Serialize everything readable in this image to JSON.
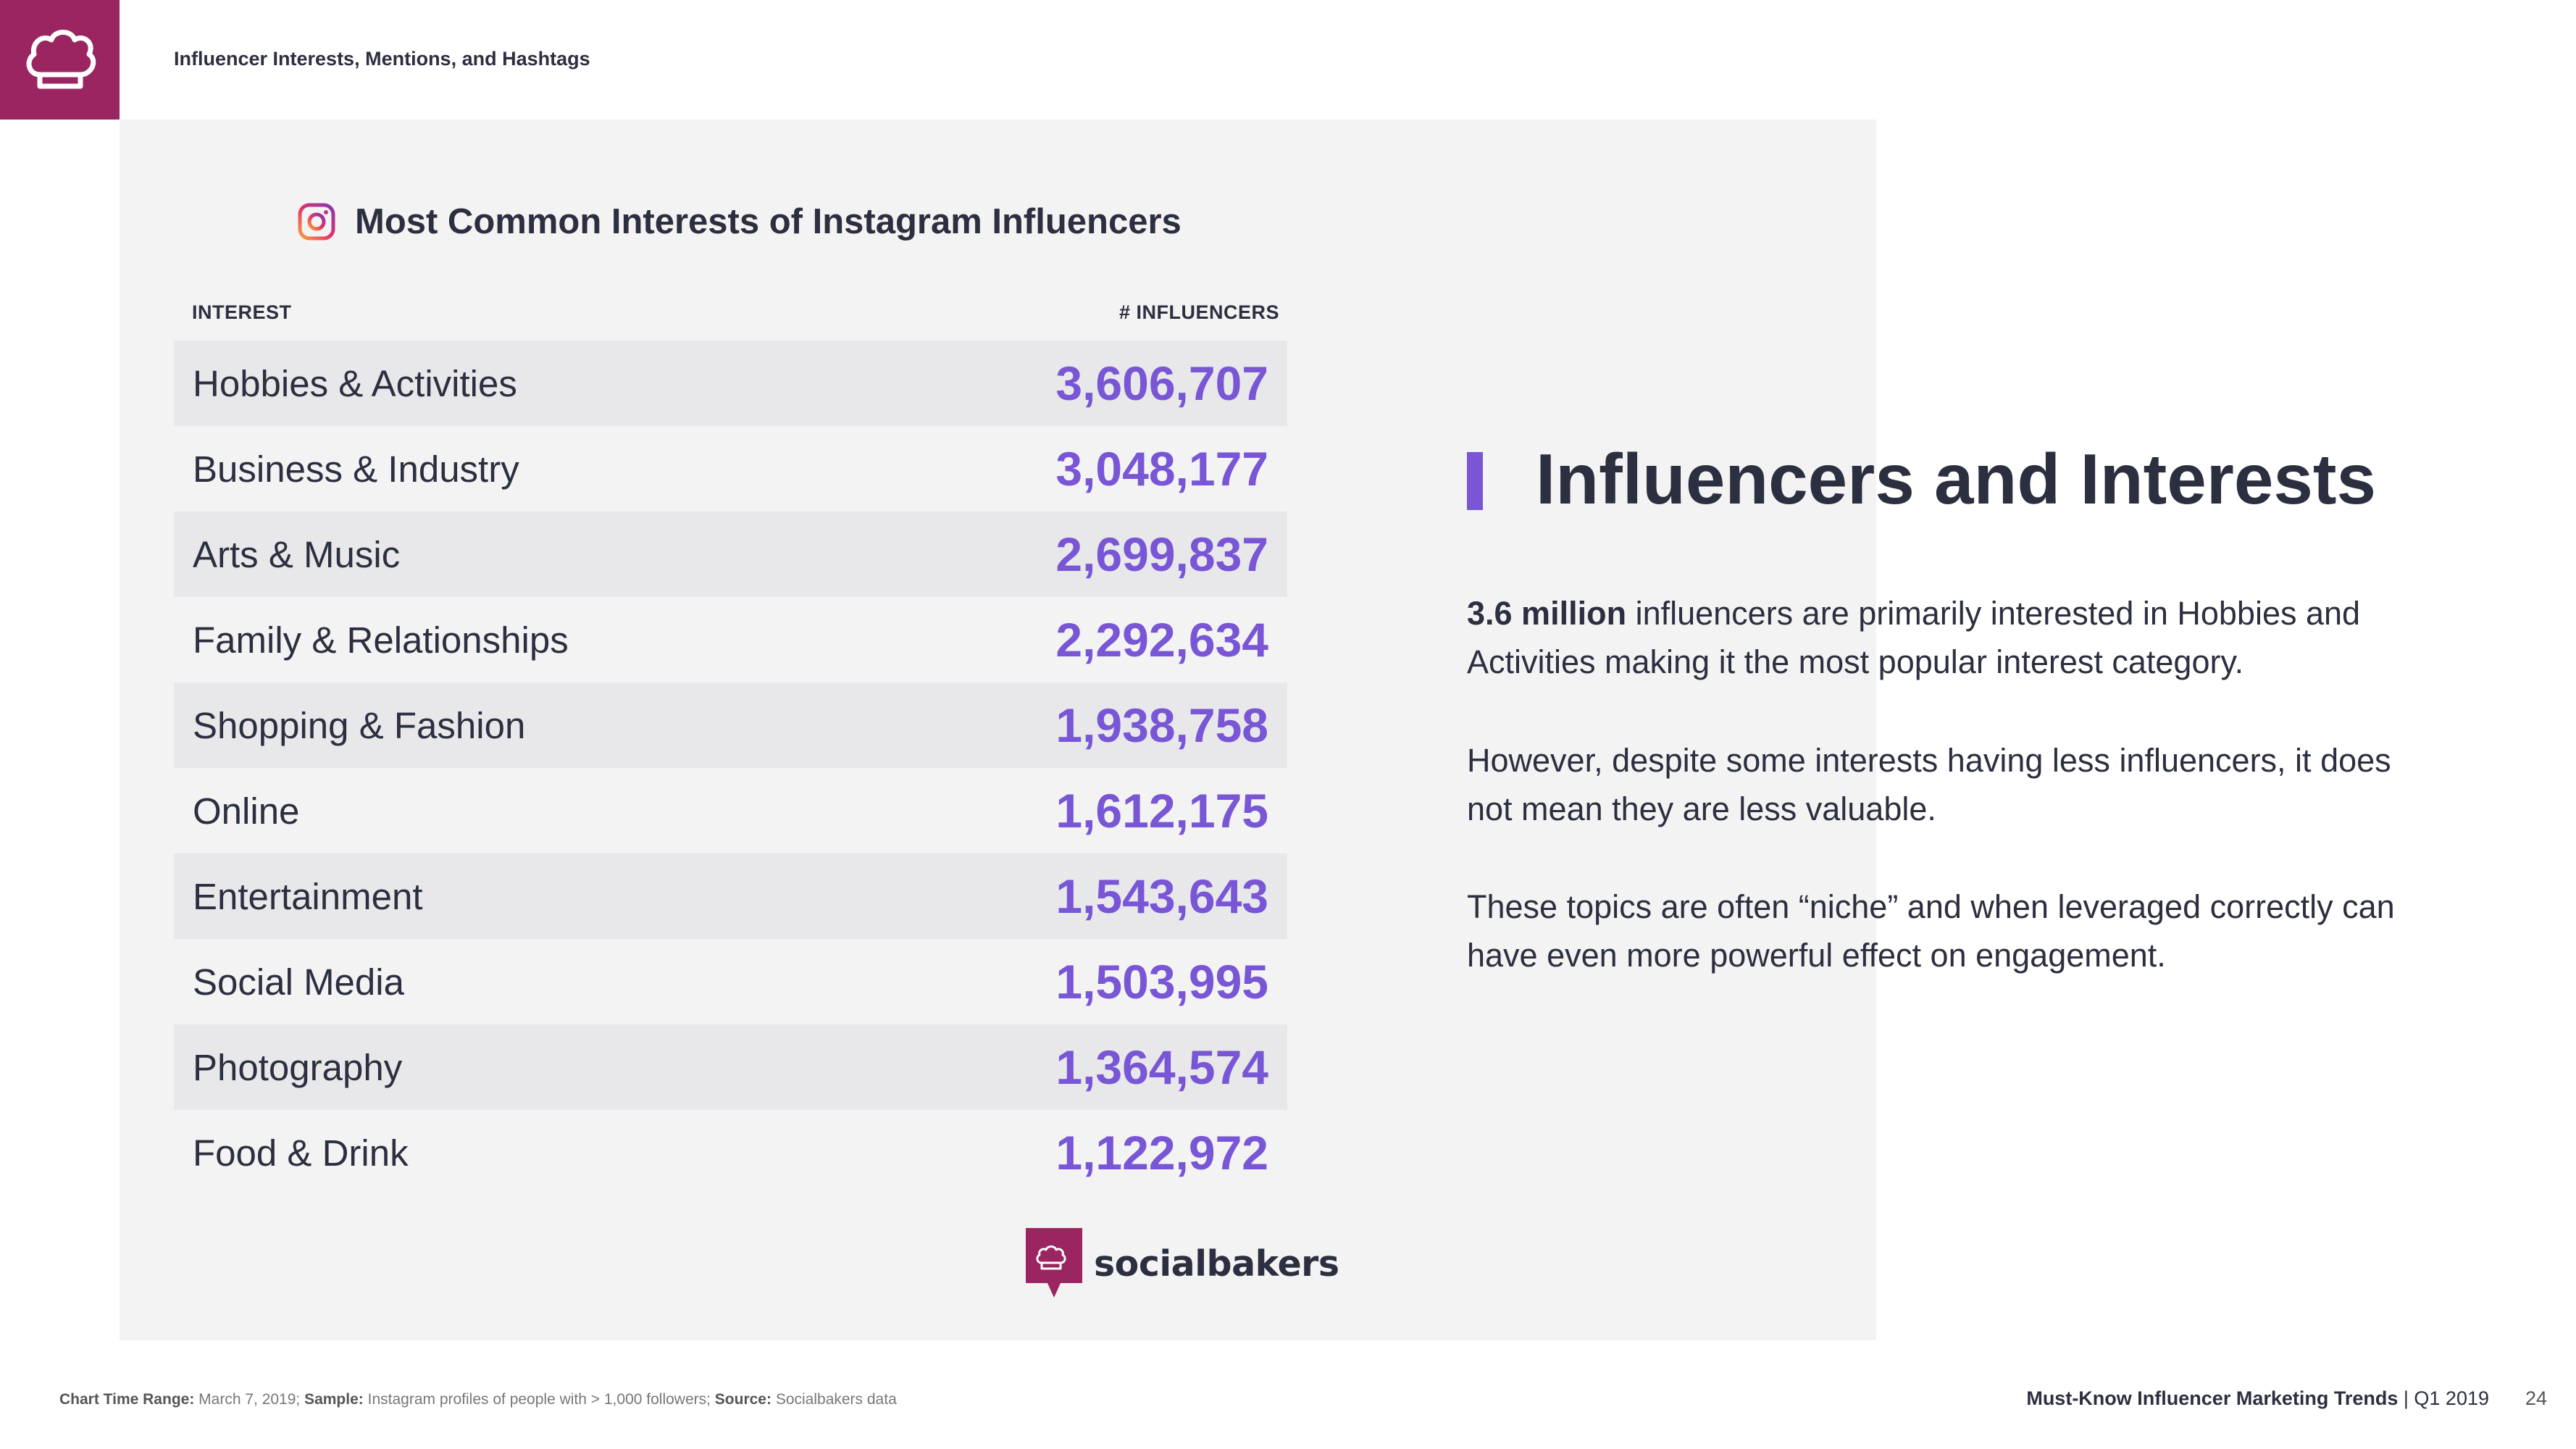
{
  "header": {
    "title": "Influencer Interests, Mentions, and Hashtags"
  },
  "chart": {
    "title": "Most Common Interests of Instagram Influencers",
    "col_interest": "INTEREST",
    "col_influencers": "# INFLUENCERS"
  },
  "chart_data": {
    "type": "table",
    "title": "Most Common Interests of Instagram Influencers",
    "columns": [
      "INTEREST",
      "# INFLUENCERS"
    ],
    "rows": [
      {
        "label": "Hobbies & Activities",
        "value": "3,606,707"
      },
      {
        "label": "Business & Industry",
        "value": "3,048,177"
      },
      {
        "label": "Arts & Music",
        "value": "2,699,837"
      },
      {
        "label": "Family & Relationships",
        "value": "2,292,634"
      },
      {
        "label": "Shopping & Fashion",
        "value": "1,938,758"
      },
      {
        "label": "Online",
        "value": "1,612,175"
      },
      {
        "label": "Entertainment",
        "value": "1,543,643"
      },
      {
        "label": "Social Media",
        "value": "1,503,995"
      },
      {
        "label": "Photography",
        "value": "1,364,574"
      },
      {
        "label": "Food & Drink",
        "value": "1,122,972"
      }
    ]
  },
  "brand": {
    "name": "socialbakers"
  },
  "side": {
    "headline": "Influencers and Interests",
    "p1_bold": "3.6 million",
    "p1_rest": " influencers are primarily interested in Hobbies and Activities making it the most popular interest category.",
    "p2": "However, despite some interests having less influencers, it does not mean they are less valuable.",
    "p3": "These topics are often “niche” and when leveraged correctly can have even more powerful effect on engagement."
  },
  "footer": {
    "range_label": "Chart Time Range:",
    "range_value": " March 7, 2019; ",
    "sample_label": "Sample:",
    "sample_value": " Instagram profiles of people with > 1,000 followers; ",
    "source_label": "Source:",
    "source_value": " Socialbakers data",
    "report_title": "Must-Know Influencer Marketing Trends",
    "report_period": " | Q1 2019",
    "page_number": "24"
  },
  "colors": {
    "brand": "#9b2560",
    "accent": "#7856d6",
    "text": "#2c2f3f"
  }
}
